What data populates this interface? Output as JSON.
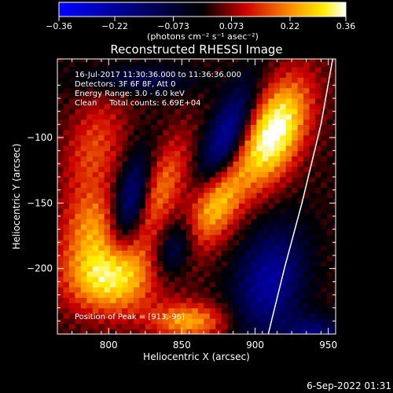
{
  "chart_data": {
    "type": "heatmap",
    "title": "Reconstructed RHESSI Image",
    "xlabel": "Heliocentric X (arcsec)",
    "ylabel": "Heliocentric Y (arcsec)",
    "xlim": [
      765,
      955
    ],
    "ylim": [
      -250,
      -40
    ],
    "x_ticks": [
      800,
      850,
      900,
      950
    ],
    "y_ticks": [
      -200,
      -150,
      -100
    ],
    "x_tick_labels": [
      "800",
      "850",
      "900",
      "950"
    ],
    "y_tick_labels": [
      "−200",
      "−150",
      "−100"
    ],
    "colorbar": {
      "range": [
        -0.36,
        0.36
      ],
      "tick_values": [
        -0.36,
        -0.22,
        -0.073,
        0.073,
        0.22,
        0.36
      ],
      "tick_labels": [
        "−0.36",
        "−0.22",
        "−0.073",
        "0.073",
        "0.22",
        "0.36"
      ],
      "units_label": "(photons cm⁻² s⁻¹ asec⁻²)",
      "colormap": [
        "#0000ff",
        "#000000",
        "#ff0000",
        "#ffff00",
        "#ffffff"
      ]
    },
    "info_lines": [
      "16-Jul-2017 11:30:36.000 to 11:36:36.000",
      "Detectors: 3F 6F 8F, Att 0",
      "Energy Range: 3.0 - 6.0 keV",
      "Clean     Total counts: 6.69E+04"
    ],
    "peak_label": "Position of Peak = [913,-96]",
    "footer_date": "6-Sep-2022 01:31",
    "peak": {
      "x": 913,
      "y": -96
    },
    "blobs": [
      {
        "x": 913,
        "y": -96,
        "sx": 14,
        "sy": 30,
        "amp": 0.36,
        "rot": 0.35
      },
      {
        "x": 872,
        "y": -150,
        "sx": 12,
        "sy": 24,
        "amp": 0.26,
        "rot": 0.35
      },
      {
        "x": 800,
        "y": -205,
        "sx": 22,
        "sy": 20,
        "amp": 0.32,
        "rot": 0.2
      },
      {
        "x": 835,
        "y": -140,
        "sx": 10,
        "sy": 30,
        "amp": 0.18,
        "rot": 0.35
      },
      {
        "x": 855,
        "y": -240,
        "sx": 18,
        "sy": 10,
        "amp": 0.22,
        "rot": 0.0
      },
      {
        "x": 790,
        "y": -110,
        "sx": 14,
        "sy": 30,
        "amp": 0.14,
        "rot": 0.2
      },
      {
        "x": 790,
        "y": -165,
        "sx": 14,
        "sy": 18,
        "amp": 0.15,
        "rot": 0.2
      },
      {
        "x": 815,
        "y": -150,
        "sx": 8,
        "sy": 26,
        "amp": -0.24,
        "rot": 0.2
      },
      {
        "x": 880,
        "y": -100,
        "sx": 9,
        "sy": 30,
        "amp": -0.27,
        "rot": 0.35
      },
      {
        "x": 910,
        "y": -210,
        "sx": 16,
        "sy": 30,
        "amp": -0.24,
        "rot": 0.2
      },
      {
        "x": 845,
        "y": -185,
        "sx": 8,
        "sy": 16,
        "amp": -0.15,
        "rot": 0.3
      },
      {
        "x": 820,
        "y": -55,
        "sx": 28,
        "sy": 8,
        "amp": -0.12,
        "rot": 0.0
      },
      {
        "x": 940,
        "y": -250,
        "sx": 14,
        "sy": 10,
        "amp": -0.18,
        "rot": 0.0
      }
    ],
    "limb_curve": [
      [
        909,
        -250
      ],
      [
        920,
        -200
      ],
      [
        932,
        -150
      ],
      [
        945,
        -90
      ],
      [
        953,
        -40
      ]
    ]
  }
}
